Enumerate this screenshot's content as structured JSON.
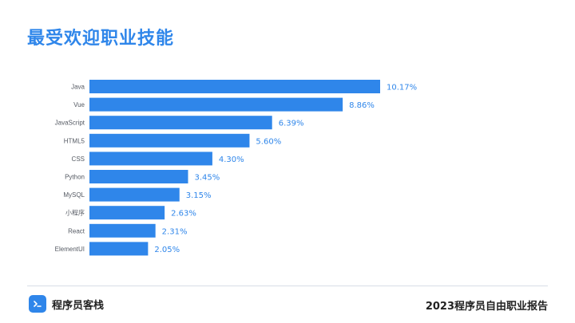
{
  "title": "最受欢迎职业技能",
  "footer": {
    "brand": "程序员客栈",
    "report": "2023程序员自由职业报告"
  },
  "colors": {
    "accent": "#2f86ea",
    "bar": "#2f86ea",
    "label": "#555a63",
    "text": "#222222"
  },
  "icons": {
    "brand_logo": "terminal-prompt-icon"
  },
  "chart_data": {
    "type": "bar",
    "orientation": "horizontal",
    "title": "最受欢迎职业技能",
    "categories": [
      "Java",
      "Vue",
      "JavaScript",
      "HTML5",
      "CSS",
      "Python",
      "MySQL",
      "小程序",
      "React",
      "ElementUI"
    ],
    "values": [
      10.17,
      8.86,
      6.39,
      5.6,
      4.3,
      3.45,
      3.15,
      2.63,
      2.31,
      2.05
    ],
    "value_labels": [
      "10.17%",
      "8.86%",
      "6.39%",
      "5.60%",
      "4.30%",
      "3.45%",
      "3.15%",
      "2.63%",
      "2.31%",
      "2.05%"
    ],
    "xlabel": "",
    "ylabel": "",
    "xlim": [
      0,
      10.17
    ],
    "grid": false,
    "legend": "none"
  }
}
